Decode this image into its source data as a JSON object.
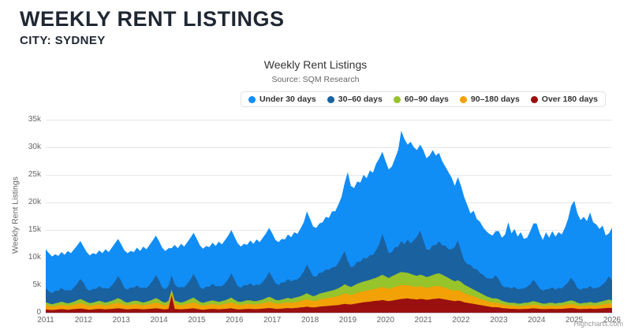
{
  "header": {
    "title": "WEEKLY RENT LISTINGS",
    "subtitle": "CITY: SYDNEY"
  },
  "chart": {
    "title": "Weekly Rent Listings",
    "subtitle": "Source: SQM Research",
    "y_axis_title": "Weekly Rent Listings",
    "credits": "Highcharts.com",
    "y_ticks": [
      "0",
      "5k",
      "10k",
      "15k",
      "20k",
      "25k",
      "30k",
      "35k"
    ],
    "x_ticks": [
      "2011",
      "2012",
      "2013",
      "2014",
      "2015",
      "2016",
      "2017",
      "2018",
      "2019",
      "2020",
      "2021",
      "2022",
      "2023",
      "2024",
      "2025",
      "2026"
    ]
  },
  "chart_data": {
    "type": "area",
    "stacking": "normal",
    "title": "Weekly Rent Listings",
    "subtitle": "Source: SQM Research",
    "ylabel": "Weekly Rent Listings",
    "unit": "thousands of listings",
    "x_range_years": [
      2011,
      2026
    ],
    "points_per_year": 12,
    "ylim": [
      0,
      35
    ],
    "grid": true,
    "legend_position": "top-right",
    "series": [
      {
        "name": "Under 30 days",
        "color": "#118DF6",
        "values": [
          7.0,
          6.9,
          6.65,
          6.6,
          6.35,
          6.5,
          6.45,
          7.1,
          6.75,
          6.9,
          6.95,
          6.9,
          6.55,
          6.65,
          6.45,
          6.45,
          6.3,
          6.45,
          6.4,
          7.05,
          6.6,
          6.85,
          6.9,
          6.75,
          6.6,
          6.8,
          6.65,
          6.6,
          6.45,
          6.85,
          6.7,
          7.45,
          7.0,
          7.25,
          7.3,
          7.15,
          7.1,
          7.2,
          6.95,
          6.85,
          4.9,
          7.15,
          7.1,
          7.85,
          7.4,
          7.55,
          7.6,
          7.45,
          7.45,
          7.55,
          7.3,
          7.35,
          7.2,
          7.45,
          7.3,
          8.05,
          7.6,
          7.85,
          7.9,
          7.85,
          7.75,
          7.75,
          7.45,
          7.5,
          7.35,
          7.75,
          7.6,
          8.2,
          7.75,
          8.0,
          8.05,
          8.0,
          7.95,
          7.85,
          7.75,
          7.9,
          7.75,
          8.1,
          8.05,
          8.6,
          8.25,
          8.7,
          8.95,
          9.65,
          9.35,
          9.0,
          8.85,
          8.95,
          9.1,
          9.55,
          9.4,
          10.15,
          10.1,
          10.55,
          10.85,
          12.35,
          16.1,
          14.75,
          14.15,
          14.55,
          14.35,
          15.05,
          14.6,
          15.35,
          14.95,
          15.65,
          15.6,
          14.9,
          14.9,
          15.2,
          15.5,
          16.1,
          17.55,
          20.0,
          19.1,
          17.25,
          18.45,
          16.85,
          15.7,
          15.6,
          16.35,
          16.55,
          17.1,
          17.25,
          16.25,
          16.05,
          15.3,
          14.3,
          14.0,
          12.95,
          11.1,
          11.5,
          11.8,
          11.5,
          10.7,
          9.3,
          10.5,
          9.1,
          9.3,
          8.6,
          8.5,
          8.1,
          7.8,
          8.0,
          8.75,
          8.65,
          9.6,
          11.75,
          10.0,
          10.5,
          9.55,
          10.25,
          9.0,
          8.9,
          9.65,
          10.2,
          10.95,
          10.0,
          9.15,
          10.35,
          9.3,
          10.2,
          9.65,
          10.1,
          9.8,
          10.45,
          11.5,
          13.05,
          14.7,
          13.5,
          12.65,
          12.9,
          12.2,
          13.35,
          12.0,
          11.5,
          10.55,
          10.7,
          8.35,
          7.8,
          9.55
        ]
      },
      {
        "name": "30–60 days",
        "color": "#1A619F",
        "values": [
          2.6,
          2.2,
          2.0,
          2.3,
          2.1,
          2.5,
          2.2,
          2.4,
          2.2,
          2.6,
          3.0,
          3.6,
          3.2,
          2.4,
          2.2,
          2.5,
          2.3,
          2.7,
          2.4,
          2.6,
          2.4,
          2.8,
          3.3,
          4.0,
          3.4,
          2.5,
          2.3,
          2.6,
          2.4,
          2.8,
          2.5,
          2.7,
          2.5,
          2.9,
          3.4,
          4.2,
          3.5,
          2.6,
          2.4,
          2.7,
          2.6,
          2.9,
          2.6,
          2.8,
          2.6,
          3.0,
          3.5,
          4.3,
          3.6,
          2.7,
          2.5,
          2.8,
          2.6,
          3.0,
          2.7,
          2.9,
          2.7,
          3.1,
          3.6,
          4.4,
          3.7,
          2.8,
          2.6,
          2.9,
          2.7,
          3.1,
          2.8,
          3.0,
          2.8,
          3.2,
          3.7,
          4.5,
          3.8,
          3.0,
          2.8,
          3.1,
          3.0,
          3.4,
          3.1,
          3.3,
          3.2,
          3.6,
          4.2,
          5.2,
          4.4,
          3.6,
          3.4,
          3.8,
          3.7,
          4.1,
          3.9,
          4.2,
          4.1,
          4.6,
          5.4,
          6.0,
          4.5,
          3.6,
          3.5,
          4.0,
          3.8,
          4.3,
          4.0,
          4.5,
          4.3,
          5.0,
          5.8,
          7.4,
          6.0,
          4.5,
          4.4,
          5.0,
          4.8,
          5.6,
          5.1,
          6.0,
          5.5,
          6.3,
          7.1,
          8.0,
          6.4,
          5.0,
          4.8,
          5.4,
          5.2,
          5.8,
          5.3,
          5.6,
          5.2,
          5.6,
          6.2,
          7.2,
          5.6,
          4.4,
          4.0,
          4.2,
          3.8,
          4.0,
          3.6,
          3.6,
          3.3,
          3.4,
          3.6,
          4.2,
          3.6,
          2.8,
          2.6,
          2.8,
          2.6,
          2.9,
          2.6,
          2.7,
          2.6,
          2.9,
          3.2,
          3.9,
          3.3,
          2.6,
          2.4,
          2.6,
          2.5,
          2.8,
          2.5,
          2.7,
          2.6,
          3.0,
          3.4,
          4.1,
          3.5,
          2.7,
          2.5,
          2.7,
          2.6,
          2.9,
          2.6,
          2.7,
          2.7,
          3.0,
          3.4,
          4.2,
          3.6
        ]
      },
      {
        "name": "60–90 days",
        "color": "#97C32B",
        "values": [
          0.5,
          0.45,
          0.4,
          0.45,
          0.5,
          0.55,
          0.5,
          0.45,
          0.5,
          0.55,
          0.65,
          0.75,
          0.65,
          0.55,
          0.5,
          0.5,
          0.55,
          0.6,
          0.55,
          0.5,
          0.55,
          0.6,
          0.7,
          0.8,
          0.7,
          0.55,
          0.5,
          0.55,
          0.6,
          0.6,
          0.55,
          0.5,
          0.55,
          0.6,
          0.7,
          0.8,
          0.7,
          0.55,
          0.5,
          0.6,
          0.5,
          0.65,
          0.55,
          0.5,
          0.55,
          0.65,
          0.75,
          0.85,
          0.7,
          0.55,
          0.5,
          0.55,
          0.6,
          0.65,
          0.6,
          0.55,
          0.6,
          0.65,
          0.75,
          0.85,
          0.7,
          0.6,
          0.55,
          0.6,
          0.65,
          0.65,
          0.6,
          0.6,
          0.65,
          0.7,
          0.8,
          0.9,
          0.8,
          0.7,
          0.65,
          0.7,
          0.75,
          0.8,
          0.75,
          0.8,
          0.85,
          0.9,
          1.0,
          1.1,
          1.0,
          0.9,
          0.95,
          1.05,
          1.1,
          1.15,
          1.2,
          1.25,
          1.3,
          1.4,
          1.5,
          1.65,
          1.55,
          1.45,
          1.55,
          1.65,
          1.7,
          1.75,
          1.8,
          1.85,
          1.9,
          2.0,
          2.1,
          2.2,
          2.1,
          2.0,
          2.1,
          2.2,
          2.3,
          2.4,
          2.3,
          2.25,
          2.2,
          2.1,
          2.05,
          2.1,
          2.05,
          1.95,
          2.0,
          2.1,
          2.2,
          2.3,
          2.2,
          2.1,
          2.0,
          1.85,
          1.75,
          1.8,
          1.7,
          1.55,
          1.45,
          1.35,
          1.25,
          1.15,
          1.05,
          0.95,
          0.85,
          0.8,
          0.75,
          0.75,
          0.7,
          0.6,
          0.55,
          0.5,
          0.5,
          0.5,
          0.45,
          0.45,
          0.5,
          0.5,
          0.55,
          0.6,
          0.55,
          0.5,
          0.45,
          0.45,
          0.5,
          0.5,
          0.45,
          0.5,
          0.5,
          0.55,
          0.6,
          0.65,
          0.6,
          0.5,
          0.45,
          0.5,
          0.5,
          0.55,
          0.5,
          0.5,
          0.55,
          0.6,
          0.65,
          0.7,
          0.65
        ]
      },
      {
        "name": "90–180 days",
        "color": "#F2A106",
        "values": [
          0.8,
          0.7,
          0.65,
          0.7,
          0.75,
          0.8,
          0.75,
          0.7,
          0.75,
          0.8,
          0.9,
          1.0,
          0.9,
          0.8,
          0.7,
          0.75,
          0.8,
          0.85,
          0.8,
          0.75,
          0.8,
          0.85,
          0.95,
          1.05,
          0.95,
          0.8,
          0.75,
          0.8,
          0.85,
          0.85,
          0.8,
          0.75,
          0.8,
          0.85,
          0.95,
          1.05,
          0.95,
          0.8,
          0.75,
          0.85,
          0.5,
          0.9,
          0.8,
          0.75,
          0.8,
          0.9,
          1.0,
          1.1,
          0.95,
          0.8,
          0.75,
          0.8,
          0.85,
          0.9,
          0.85,
          0.8,
          0.85,
          0.9,
          1.0,
          1.1,
          0.95,
          0.85,
          0.8,
          0.85,
          0.9,
          0.9,
          0.85,
          0.85,
          0.9,
          0.95,
          1.05,
          1.15,
          1.05,
          0.95,
          0.9,
          0.95,
          1.0,
          1.05,
          1.0,
          1.05,
          1.1,
          1.15,
          1.25,
          1.35,
          1.25,
          1.15,
          1.2,
          1.3,
          1.35,
          1.4,
          1.45,
          1.5,
          1.55,
          1.65,
          1.75,
          1.9,
          1.8,
          1.7,
          1.8,
          1.9,
          1.95,
          2.0,
          2.05,
          2.1,
          2.15,
          2.2,
          2.3,
          2.4,
          2.3,
          2.2,
          2.3,
          2.4,
          2.45,
          2.5,
          2.45,
          2.4,
          2.35,
          2.3,
          2.25,
          2.3,
          2.25,
          2.15,
          2.2,
          2.25,
          2.3,
          2.25,
          2.2,
          2.1,
          2.0,
          1.9,
          1.85,
          1.9,
          1.8,
          1.65,
          1.55,
          1.45,
          1.35,
          1.25,
          1.15,
          1.05,
          0.95,
          0.9,
          0.85,
          0.85,
          0.8,
          0.7,
          0.65,
          0.6,
          0.6,
          0.6,
          0.55,
          0.55,
          0.6,
          0.6,
          0.65,
          0.7,
          0.65,
          0.6,
          0.55,
          0.55,
          0.6,
          0.6,
          0.55,
          0.6,
          0.6,
          0.65,
          0.7,
          0.75,
          0.7,
          0.6,
          0.55,
          0.6,
          0.6,
          0.65,
          0.6,
          0.6,
          0.65,
          0.7,
          0.75,
          0.8,
          0.75
        ]
      },
      {
        "name": "Over 180 days",
        "color": "#9A1010",
        "values": [
          0.6,
          0.55,
          0.5,
          0.55,
          0.6,
          0.65,
          0.6,
          0.55,
          0.6,
          0.65,
          0.7,
          0.75,
          0.7,
          0.6,
          0.55,
          0.6,
          0.65,
          0.7,
          0.65,
          0.6,
          0.65,
          0.7,
          0.75,
          0.8,
          0.75,
          0.65,
          0.6,
          0.65,
          0.7,
          0.7,
          0.65,
          0.6,
          0.65,
          0.7,
          0.75,
          0.8,
          0.75,
          0.65,
          0.6,
          0.7,
          3.2,
          0.7,
          0.65,
          0.6,
          0.65,
          0.7,
          0.75,
          0.8,
          0.7,
          0.6,
          0.55,
          0.6,
          0.65,
          0.7,
          0.65,
          0.6,
          0.65,
          0.7,
          0.75,
          0.8,
          0.7,
          0.6,
          0.6,
          0.65,
          0.7,
          0.7,
          0.65,
          0.65,
          0.7,
          0.75,
          0.8,
          0.85,
          0.8,
          0.7,
          0.7,
          0.75,
          0.8,
          0.85,
          0.8,
          0.85,
          0.9,
          0.95,
          1.0,
          1.1,
          1.0,
          0.95,
          1.0,
          1.1,
          1.15,
          1.2,
          1.25,
          1.3,
          1.35,
          1.4,
          1.5,
          1.6,
          1.55,
          1.5,
          1.6,
          1.7,
          1.8,
          1.9,
          1.95,
          2.0,
          2.1,
          2.15,
          2.2,
          2.3,
          2.2,
          2.1,
          2.2,
          2.3,
          2.4,
          2.5,
          2.55,
          2.6,
          2.5,
          2.45,
          2.4,
          2.5,
          2.45,
          2.35,
          2.4,
          2.5,
          2.55,
          2.6,
          2.5,
          2.4,
          2.3,
          2.2,
          2.1,
          2.2,
          2.1,
          1.9,
          1.8,
          1.7,
          1.6,
          1.5,
          1.4,
          1.3,
          1.2,
          1.1,
          1.0,
          1.0,
          0.95,
          0.85,
          0.8,
          0.75,
          0.7,
          0.7,
          0.65,
          0.65,
          0.7,
          0.7,
          0.75,
          0.8,
          0.75,
          0.7,
          0.65,
          0.65,
          0.7,
          0.7,
          0.65,
          0.7,
          0.7,
          0.75,
          0.8,
          0.85,
          0.8,
          0.7,
          0.65,
          0.7,
          0.7,
          0.75,
          0.7,
          0.7,
          0.75,
          0.8,
          0.85,
          0.9,
          0.85
        ]
      }
    ]
  }
}
